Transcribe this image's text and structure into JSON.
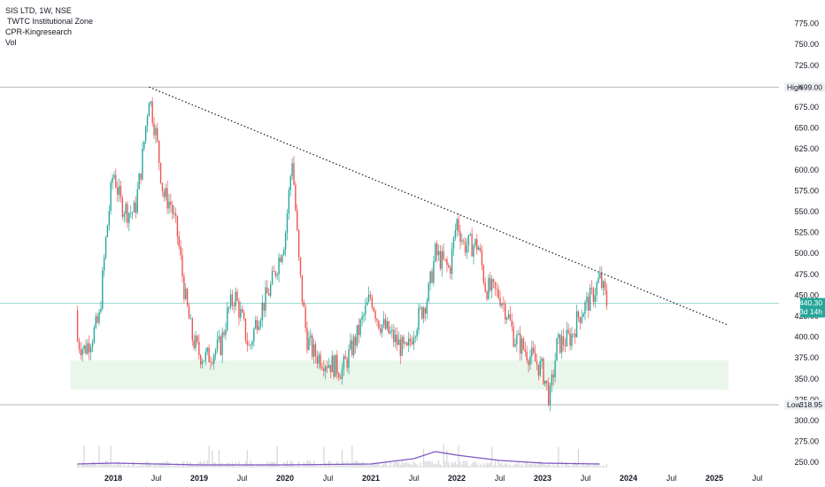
{
  "legend": {
    "symbol": "SIS LTD, 1W, NSE",
    "indicator1": "TWTC Institutional Zone",
    "indicator2": "CPR-Kingresearch",
    "indicator3": "Vol"
  },
  "colors": {
    "up": "#26a69a",
    "down": "#ef5350",
    "trendline": "#131722",
    "zone": "#e8f5e9",
    "volume_ma": "#7e57c2",
    "last_price_tag": "#26a69a",
    "hl_line": "#b2b5be"
  },
  "tags": {
    "high_label": "High",
    "high_value": "699.00",
    "low_label": "Low",
    "low_value": "318.95",
    "last_price": "440.30",
    "countdown": "3d 14h"
  },
  "chart_data": {
    "type": "candlestick",
    "title": "SIS LTD, 1W, NSE",
    "price_axis": {
      "ylim": [
        246,
        782
      ],
      "ticks": [
        "775.00",
        "750.00",
        "725.00",
        "700.00",
        "675.00",
        "650.00",
        "625.00",
        "600.00",
        "575.00",
        "550.00",
        "525.00",
        "500.00",
        "475.00",
        "450.00",
        "425.00",
        "400.00",
        "375.00",
        "350.00",
        "325.00",
        "300.00",
        "275.00",
        "250.00"
      ]
    },
    "time_axis": {
      "labels": [
        "2018",
        "Jul",
        "2019",
        "Jul",
        "2020",
        "Jul",
        "2021",
        "Jul",
        "2022",
        "Jul",
        "2023",
        "Jul",
        "2024",
        "Jul",
        "2025",
        "Jul"
      ],
      "label_dates": [
        "2018-01",
        "2018-07",
        "2019-01",
        "2019-07",
        "2020-01",
        "2020-07",
        "2021-01",
        "2021-07",
        "2022-01",
        "2022-07",
        "2023-01",
        "2023-07",
        "2024-01",
        "2024-07",
        "2025-01",
        "2025-07"
      ]
    },
    "series_anchor_prices": [
      [
        "2017-08",
        432
      ],
      [
        "2017-08",
        395
      ],
      [
        "2017-09",
        385
      ],
      [
        "2017-10",
        400
      ],
      [
        "2017-11",
        420
      ],
      [
        "2017-12",
        520
      ],
      [
        "2018-01",
        600
      ],
      [
        "2018-02",
        560
      ],
      [
        "2018-03",
        550
      ],
      [
        "2018-04",
        550
      ],
      [
        "2018-05",
        610
      ],
      [
        "2018-06",
        690
      ],
      [
        "2018-07",
        640
      ],
      [
        "2018-08",
        570
      ],
      [
        "2018-09",
        560
      ],
      [
        "2018-10",
        520
      ],
      [
        "2018-11",
        450
      ],
      [
        "2018-12",
        400
      ],
      [
        "2019-01",
        380
      ],
      [
        "2019-02",
        375
      ],
      [
        "2019-04",
        390
      ],
      [
        "2019-05",
        430
      ],
      [
        "2019-06",
        450
      ],
      [
        "2019-07",
        420
      ],
      [
        "2019-08",
        385
      ],
      [
        "2019-09",
        420
      ],
      [
        "2019-10",
        440
      ],
      [
        "2019-11",
        460
      ],
      [
        "2019-12",
        490
      ],
      [
        "2020-01",
        520
      ],
      [
        "2020-02",
        615
      ],
      [
        "2020-03",
        480
      ],
      [
        "2020-04",
        400
      ],
      [
        "2020-05",
        380
      ],
      [
        "2020-07",
        370
      ],
      [
        "2020-09",
        360
      ],
      [
        "2020-11",
        400
      ],
      [
        "2021-01",
        450
      ],
      [
        "2021-02",
        420
      ],
      [
        "2021-04",
        400
      ],
      [
        "2021-06",
        380
      ],
      [
        "2021-07",
        410
      ],
      [
        "2021-09",
        450
      ],
      [
        "2021-10",
        500
      ],
      [
        "2021-12",
        480
      ],
      [
        "2022-01",
        540
      ],
      [
        "2022-02",
        510
      ],
      [
        "2022-04",
        510
      ],
      [
        "2022-05",
        460
      ],
      [
        "2022-07",
        450
      ],
      [
        "2022-08",
        430
      ],
      [
        "2022-09",
        400
      ],
      [
        "2022-11",
        380
      ],
      [
        "2023-01",
        360
      ],
      [
        "2023-02",
        325
      ],
      [
        "2023-03",
        390
      ],
      [
        "2023-05",
        400
      ],
      [
        "2023-06",
        425
      ],
      [
        "2023-08",
        450
      ],
      [
        "2023-09",
        470
      ],
      [
        "2023-10",
        440
      ]
    ],
    "high": 699.0,
    "low": 318.95,
    "last_price": 440.3,
    "trendline": {
      "start": [
        "2018-06",
        699
      ],
      "end": [
        "2025-03",
        414
      ]
    },
    "institutional_zone": {
      "x_start": "2017-07",
      "x_end": "2025-03",
      "y_top": 372,
      "y_bottom": 337
    },
    "volume": {
      "ma_shape": [
        [
          "2017-08",
          0.2
        ],
        [
          "2018-01",
          0.25
        ],
        [
          "2018-07",
          0.2
        ],
        [
          "2019-01",
          0.15
        ],
        [
          "2020-01",
          0.15
        ],
        [
          "2021-01",
          0.2
        ],
        [
          "2021-07",
          0.5
        ],
        [
          "2021-10",
          0.9
        ],
        [
          "2022-01",
          0.7
        ],
        [
          "2022-07",
          0.4
        ],
        [
          "2023-01",
          0.25
        ],
        [
          "2023-09",
          0.2
        ]
      ]
    }
  }
}
